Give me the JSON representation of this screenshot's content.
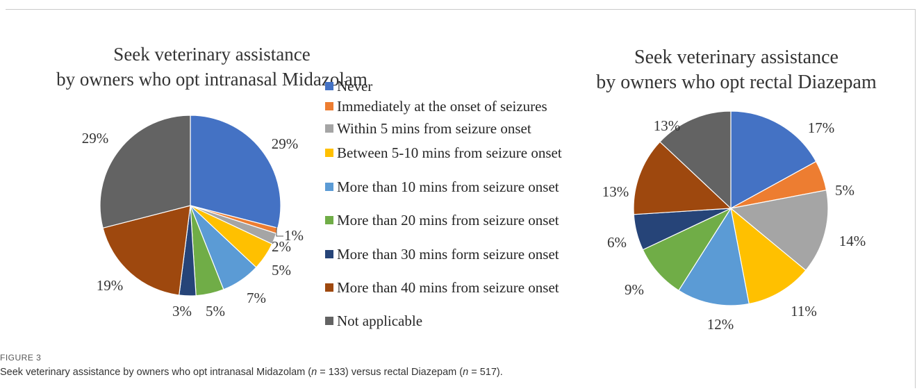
{
  "figure_label": "FIGURE 3",
  "caption": {
    "part1": "Seek veterinary assistance by owners who opt intranasal Midazolam (",
    "n1_var": "n",
    "n1_val": " = 133) versus rectal Diazepam (",
    "n2_var": "n",
    "n2_val": " = 517)."
  },
  "legend": [
    {
      "label": "Never",
      "color": "#4472C4"
    },
    {
      "label": "Immediately at the onset of seizures",
      "color": "#ED7D31"
    },
    {
      "label": "Within 5 mins from seizure onset",
      "color": "#A5A5A5"
    },
    {
      "label": "Between 5-10 mins from seizure onset",
      "color": "#FFC000"
    },
    {
      "label": "More than 10 mins from seizure onset",
      "color": "#5B9BD5"
    },
    {
      "label": "More than 20 mins from seizure onset",
      "color": "#70AD47"
    },
    {
      "label": "More than 30 mins form seizure onset",
      "color": "#264478"
    },
    {
      "label": "More than 40 mins from seizure onset",
      "color": "#9E480E"
    },
    {
      "label": "Not applicable",
      "color": "#636363"
    }
  ],
  "chart_data": [
    {
      "type": "pie",
      "title": [
        "Seek veterinary assistance",
        "by owners who opt intranasal Midazolam"
      ],
      "categories": [
        "Never",
        "Immediately at the onset of seizures",
        "Within 5 mins from seizure onset",
        "Between 5-10 mins from seizure onset",
        "More than 10 mins from seizure onset",
        "More than 20 mins from seizure onset",
        "More than 30 mins form seizure onset",
        "More than 40 mins from seizure onset",
        "Not applicable"
      ],
      "values": [
        29,
        1,
        2,
        5,
        7,
        5,
        3,
        19,
        29
      ],
      "labels": [
        "29%",
        "1%",
        "2%",
        "5%",
        "7%",
        "5%",
        "3%",
        "19%",
        "29%"
      ]
    },
    {
      "type": "pie",
      "title": [
        "Seek veterinary assistance",
        "by owners who opt rectal Diazepam"
      ],
      "categories": [
        "Never",
        "Immediately at the onset of seizures",
        "Within 5 mins from seizure onset",
        "Between 5-10 mins from seizure onset",
        "More than 10 mins from seizure onset",
        "More than 20 mins from seizure onset",
        "More than 30 mins form seizure onset",
        "More than 40 mins from seizure onset",
        "Not applicable"
      ],
      "values": [
        17,
        5,
        14,
        11,
        12,
        9,
        6,
        13,
        13
      ],
      "labels": [
        "17%",
        "5%",
        "14%",
        "11%",
        "12%",
        "9%",
        "6%",
        "13%",
        "13%"
      ]
    }
  ]
}
